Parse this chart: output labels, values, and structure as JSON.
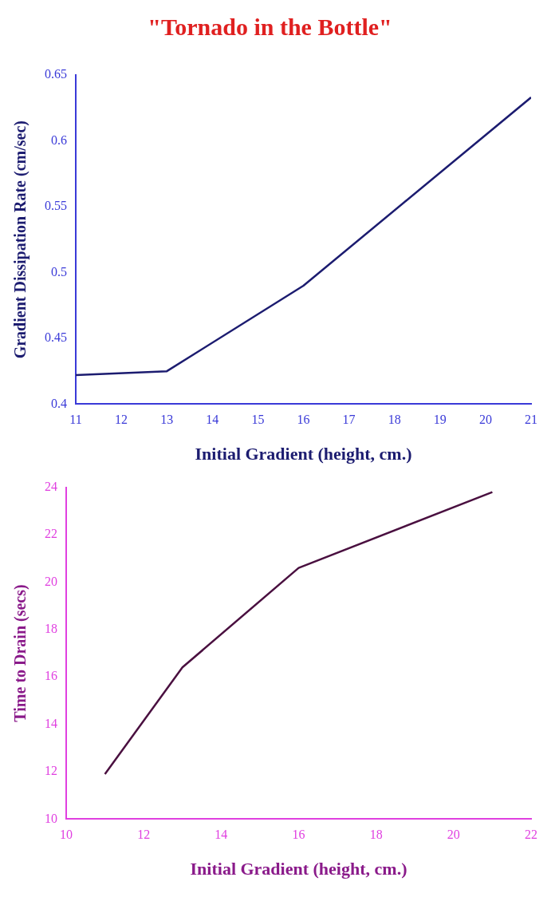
{
  "chart_data": [
    {
      "type": "line",
      "title": "\"Tornado in the Bottle\"",
      "xlabel": "Initial Gradient (height, cm.)",
      "ylabel": "Gradient Dissipation Rate (cm/sec)",
      "x": [
        11,
        13,
        16,
        21
      ],
      "series": [
        {
          "color": "#1c1c70",
          "values": [
            0.422,
            0.425,
            0.49,
            0.633
          ]
        }
      ],
      "xlim": [
        11,
        21
      ],
      "xticks": [
        11,
        12,
        13,
        14,
        15,
        16,
        17,
        18,
        19,
        20,
        21
      ],
      "ylim": [
        0.4,
        0.65
      ],
      "yticks": [
        0.4,
        0.45,
        0.5,
        0.55,
        0.6,
        0.65
      ],
      "grid": false,
      "legend": false,
      "marker": "none"
    },
    {
      "type": "line",
      "xlabel": "Initial Gradient (height, cm.)",
      "ylabel": "Time to Drain (secs)",
      "x": [
        11,
        13,
        16,
        21
      ],
      "series": [
        {
          "color": "#4a1040",
          "values": [
            11.9,
            16.4,
            20.6,
            23.8
          ]
        }
      ],
      "xlim": [
        10,
        22
      ],
      "xticks": [
        10,
        12,
        14,
        16,
        18,
        20,
        22
      ],
      "ylim": [
        10,
        24
      ],
      "yticks": [
        10,
        12,
        14,
        16,
        18,
        20,
        22,
        24
      ],
      "grid": false,
      "legend": false,
      "marker": "none"
    }
  ]
}
